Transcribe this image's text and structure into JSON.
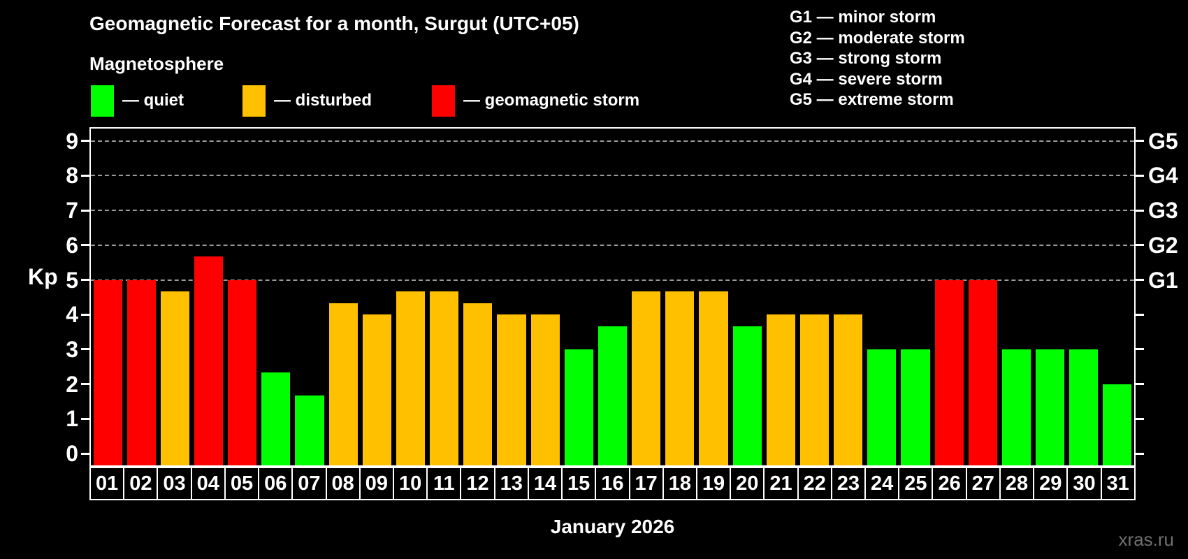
{
  "title": "Geomagnetic Forecast for a month, Surgut (UTC+05)",
  "subtitle": "Magnetosphere",
  "legend": {
    "quiet_label": "— quiet",
    "disturbed_label": "— disturbed",
    "storm_label": "— geomagnetic storm"
  },
  "storm_scale_legend": [
    "G1 — minor storm",
    "G2 — moderate storm",
    "G3 — strong storm",
    "G4 — severe storm",
    "G5 — extreme storm"
  ],
  "colors": {
    "quiet": "#00ff00",
    "disturbed": "#ffc000",
    "storm": "#ff0000",
    "grid": "#9a9a9a",
    "axis": "#ffffff",
    "watermark_gray": "#707070"
  },
  "axis": {
    "y_label": "Kp",
    "y_ticks": [
      0,
      1,
      2,
      3,
      4,
      5,
      6,
      7,
      8,
      9
    ],
    "x_label": "January 2026"
  },
  "watermark": "xras.ru",
  "chart_data": {
    "type": "bar",
    "title": "Geomagnetic Forecast for a month, Surgut (UTC+05)",
    "xlabel": "January 2026",
    "ylabel": "Kp",
    "ylim": [
      0,
      9
    ],
    "grid": "dashed horizontal at Kp 5-9",
    "gridlines_at": [
      5,
      6,
      7,
      8,
      9
    ],
    "right_axis_labels": {
      "5": "G1",
      "6": "G2",
      "7": "G3",
      "8": "G4",
      "9": "G5"
    },
    "legend_position": "top-left",
    "categories": [
      "01",
      "02",
      "03",
      "04",
      "05",
      "06",
      "07",
      "08",
      "09",
      "10",
      "11",
      "12",
      "13",
      "14",
      "15",
      "16",
      "17",
      "18",
      "19",
      "20",
      "21",
      "22",
      "23",
      "24",
      "25",
      "26",
      "27",
      "28",
      "29",
      "30",
      "31"
    ],
    "values": [
      5,
      5,
      4.67,
      5.67,
      5,
      2.33,
      1.67,
      4.33,
      4,
      4.67,
      4.67,
      4.33,
      4,
      4,
      3,
      3.67,
      4.67,
      4.67,
      4.67,
      3.67,
      4,
      4,
      4,
      3,
      3,
      5,
      5,
      3,
      3,
      3,
      2
    ],
    "statuses": [
      "storm",
      "storm",
      "disturbed",
      "storm",
      "storm",
      "quiet",
      "quiet",
      "disturbed",
      "disturbed",
      "disturbed",
      "disturbed",
      "disturbed",
      "disturbed",
      "disturbed",
      "quiet",
      "quiet",
      "disturbed",
      "disturbed",
      "disturbed",
      "quiet",
      "disturbed",
      "disturbed",
      "disturbed",
      "quiet",
      "quiet",
      "storm",
      "storm",
      "quiet",
      "quiet",
      "quiet",
      "quiet"
    ]
  }
}
